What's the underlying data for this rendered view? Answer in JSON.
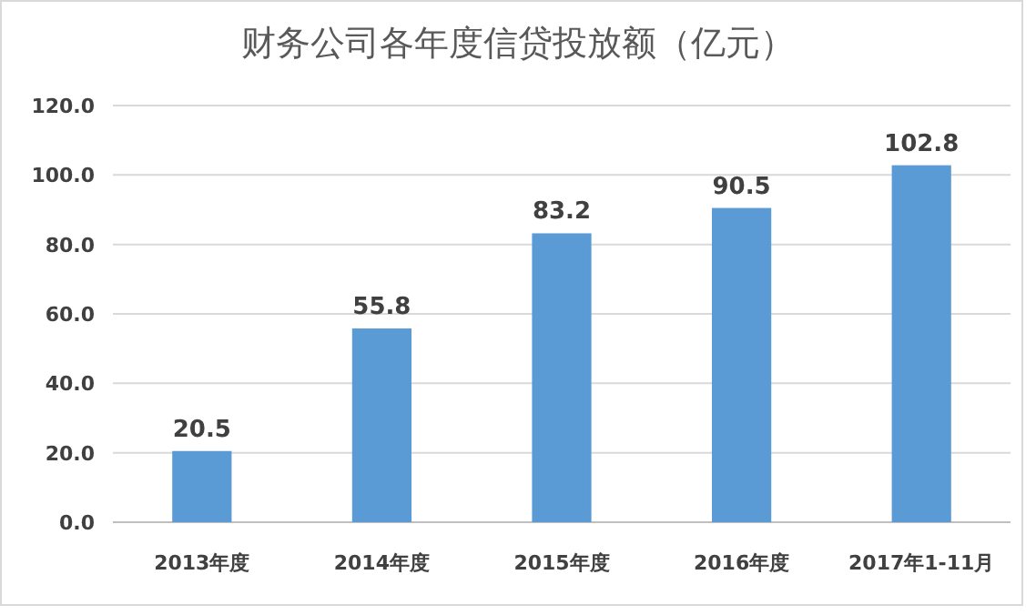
{
  "chart_data": {
    "type": "bar",
    "title": "财务公司各年度信贷投放额（亿元）",
    "categories": [
      "2013年度",
      "2014年度",
      "2015年度",
      "2016年度",
      "2017年1-11月"
    ],
    "values": [
      20.5,
      55.8,
      83.2,
      90.5,
      102.8
    ],
    "color": "#5b9bd5",
    "ylim": [
      0,
      120
    ],
    "yticks": [
      {
        "value": 0,
        "label": "0.0"
      },
      {
        "value": 20,
        "label": "20.0"
      },
      {
        "value": 40,
        "label": "40.0"
      },
      {
        "value": 60,
        "label": "60.0"
      },
      {
        "value": 80,
        "label": "80.0"
      },
      {
        "value": 100,
        "label": "100.0"
      },
      {
        "value": 120,
        "label": "120.0"
      }
    ],
    "grid": "y",
    "data_labels": true
  }
}
